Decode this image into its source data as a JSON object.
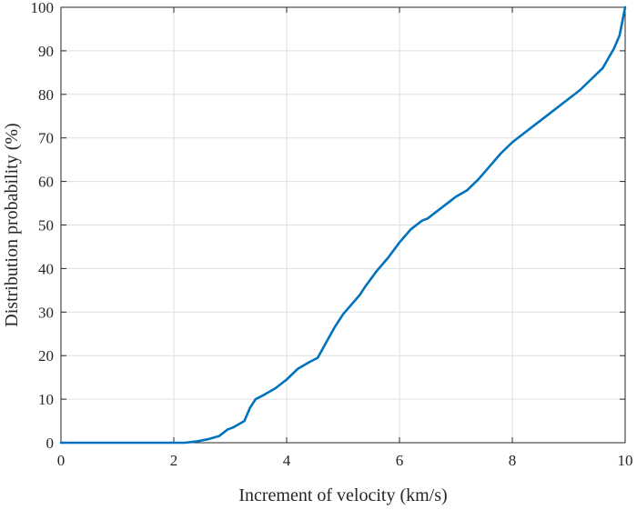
{
  "chart_data": {
    "type": "line",
    "xlabel": "Increment of velocity (km/s)",
    "ylabel": "Distribution probability (%)",
    "xlim": [
      0,
      10
    ],
    "ylim": [
      0,
      100
    ],
    "x_ticks": [
      "0",
      "2",
      "4",
      "6",
      "8",
      "10"
    ],
    "y_ticks": [
      "0",
      "10",
      "20",
      "30",
      "40",
      "50",
      "60",
      "70",
      "80",
      "90",
      "100"
    ],
    "grid": true,
    "legend": "none",
    "series": [
      {
        "color": "#0072BD",
        "x": [
          0,
          1,
          2,
          2.2,
          2.4,
          2.6,
          2.8,
          2.95,
          3.05,
          3.25,
          3.35,
          3.45,
          3.6,
          3.8,
          4.0,
          4.2,
          4.4,
          4.55,
          4.7,
          4.85,
          5.0,
          5.2,
          5.3,
          5.4,
          5.6,
          5.8,
          6.0,
          6.2,
          6.4,
          6.5,
          6.7,
          6.9,
          7.0,
          7.2,
          7.4,
          7.6,
          7.8,
          8.0,
          8.2,
          8.4,
          8.6,
          8.8,
          9.0,
          9.2,
          9.4,
          9.6,
          9.8,
          9.9,
          10.0
        ],
        "values": [
          0,
          0,
          0,
          0,
          0.3,
          0.8,
          1.5,
          3.0,
          3.5,
          5.0,
          8.0,
          10.0,
          11.0,
          12.5,
          14.5,
          17.0,
          18.5,
          19.5,
          23.0,
          26.5,
          29.5,
          32.5,
          34.0,
          36.0,
          39.5,
          42.5,
          46.0,
          49.0,
          51.0,
          51.5,
          53.5,
          55.5,
          56.5,
          58.0,
          60.5,
          63.5,
          66.5,
          69.0,
          71.0,
          73.0,
          75.0,
          77.0,
          79.0,
          81.0,
          83.5,
          86.0,
          90.5,
          93.5,
          100.0
        ]
      }
    ]
  }
}
